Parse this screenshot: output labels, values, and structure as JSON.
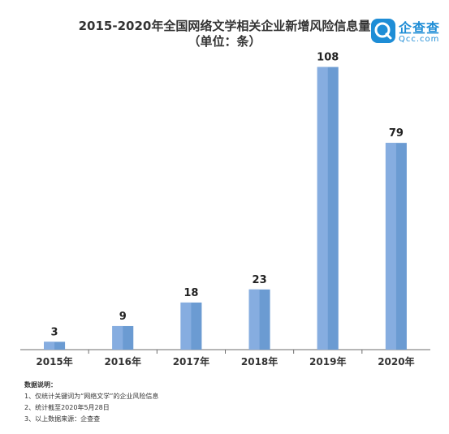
{
  "title_line1": "2015-2020年全国网络文学相关企业新增风险信息量",
  "title_line2": "（单位：条）",
  "logo": {
    "cn": "企查查",
    "en": "Qcc.com"
  },
  "colors": {
    "bar": "#6b9bd2",
    "bar_highlight": "#86ade0",
    "axis": "#6e6e6e",
    "brand": "#1e8dd6"
  },
  "chart_data": {
    "type": "bar",
    "title": "2015-2020年全国网络文学相关企业新增风险信息量",
    "subtitle": "（单位：条）",
    "categories": [
      "2015年",
      "2016年",
      "2017年",
      "2018年",
      "2019年",
      "2020年"
    ],
    "values": [
      3,
      9,
      18,
      23,
      108,
      79
    ],
    "data_labels": [
      "3",
      "9",
      "18",
      "23",
      "108",
      "79"
    ],
    "xlabel": "",
    "ylabel": "",
    "ylim": [
      0,
      115
    ],
    "grid": false,
    "legend": "none"
  },
  "notes": {
    "heading": "数据说明：",
    "items": [
      "1、仅统计关键词为“网络文学”的企业风险信息",
      "2、统计截至2020年5月28日",
      "3、以上数据来源：企查查"
    ]
  }
}
